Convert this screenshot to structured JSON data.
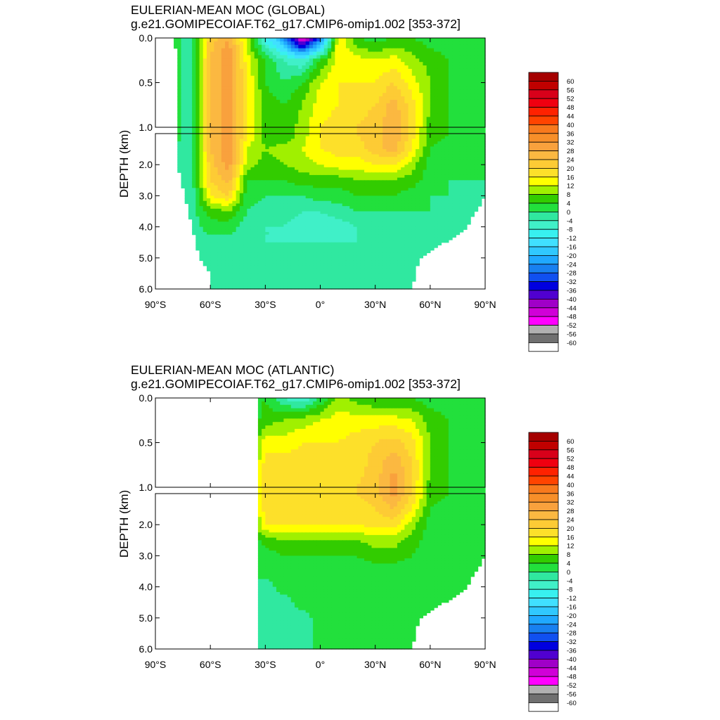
{
  "colorbar": {
    "labels": [
      "60",
      "56",
      "52",
      "48",
      "44",
      "40",
      "36",
      "32",
      "28",
      "24",
      "20",
      "16",
      "12",
      "8",
      "4",
      "0",
      "-4",
      "-8",
      "-12",
      "-16",
      "-20",
      "-24",
      "-28",
      "-32",
      "-36",
      "-40",
      "-44",
      "-48",
      "-52",
      "-56",
      "-60"
    ],
    "colors": [
      "#a50000",
      "#c00000",
      "#d8001a",
      "#f00010",
      "#ff2200",
      "#ff4400",
      "#f77a1d",
      "#f78f29",
      "#f9a13d",
      "#fbb841",
      "#fdcb35",
      "#fde02a",
      "#ffff00",
      "#a0f000",
      "#32cc00",
      "#22e03c",
      "#30e8a0",
      "#40f0c8",
      "#38f0f0",
      "#40e0ff",
      "#30c8ff",
      "#20a8ff",
      "#1880f0",
      "#1050f0",
      "#0000e0",
      "#5000d0",
      "#a000c8",
      "#d000d8",
      "#ff00ff",
      "#b0b0b0",
      "#707070",
      "#ffffff"
    ]
  },
  "chart_data": [
    {
      "type": "heatmap",
      "title": "EULERIAN-MEAN MOC (GLOBAL)",
      "subtitle": "g.e21.GOMIPECOIAF.T62_g17.CMIP6-omip1.002 [353-372]",
      "ylabel": "DEPTH (km)",
      "xticks": [
        "90°S",
        "60°S",
        "30°S",
        "0°",
        "30°N",
        "60°N",
        "90°N"
      ],
      "yticks_upper": [
        "0.0",
        "0.5",
        "1.0"
      ],
      "yticks_lower": [
        "2.0",
        "3.0",
        "4.0",
        "5.0",
        "6.0"
      ],
      "xlim": [
        -90,
        90
      ],
      "ylim_upper": [
        0,
        1
      ],
      "ylim_lower": [
        1,
        6
      ],
      "x": [
        -90,
        -80,
        -70,
        -60,
        -50,
        -40,
        -30,
        -20,
        -10,
        0,
        10,
        20,
        30,
        40,
        50,
        60,
        70,
        80,
        90
      ],
      "y": [
        0,
        0.25,
        0.5,
        0.75,
        1,
        1.5,
        2,
        2.5,
        3,
        3.5,
        4,
        4.5,
        5,
        5.5,
        6
      ],
      "mask_x_min": [
        -80,
        -78,
        -78,
        -78,
        -78,
        -78,
        -78,
        -76,
        -74,
        -72,
        -70,
        -68,
        -66,
        -60,
        -60
      ],
      "mask_x_max": [
        90,
        90,
        90,
        90,
        90,
        90,
        90,
        90,
        90,
        85,
        80,
        68,
        54,
        52,
        50
      ],
      "values": [
        [
          0,
          2,
          -2,
          22,
          28,
          10,
          -10,
          -24,
          -50,
          -30,
          16,
          4,
          2,
          4,
          4,
          2,
          2,
          2,
          2
        ],
        [
          0,
          2,
          -2,
          24,
          32,
          14,
          4,
          -4,
          -8,
          4,
          14,
          14,
          12,
          14,
          10,
          6,
          4,
          2,
          2
        ],
        [
          0,
          2,
          -2,
          24,
          32,
          16,
          4,
          0,
          4,
          12,
          16,
          16,
          16,
          20,
          14,
          8,
          4,
          2,
          2
        ],
        [
          0,
          2,
          -2,
          24,
          32,
          16,
          6,
          4,
          8,
          14,
          16,
          18,
          20,
          26,
          18,
          8,
          4,
          2,
          2
        ],
        [
          0,
          2,
          -2,
          24,
          32,
          16,
          6,
          4,
          10,
          16,
          18,
          20,
          22,
          28,
          18,
          6,
          4,
          2,
          2
        ],
        [
          0,
          0,
          -2,
          24,
          32,
          12,
          8,
          10,
          12,
          16,
          18,
          18,
          22,
          26,
          16,
          4,
          2,
          2,
          2
        ],
        [
          0,
          0,
          -2,
          22,
          30,
          10,
          6,
          8,
          10,
          12,
          14,
          14,
          16,
          16,
          10,
          2,
          2,
          2,
          2
        ],
        [
          0,
          0,
          -2,
          20,
          26,
          4,
          4,
          4,
          6,
          6,
          6,
          8,
          8,
          8,
          6,
          2,
          0,
          0,
          0
        ],
        [
          0,
          0,
          -2,
          16,
          20,
          2,
          0,
          0,
          0,
          2,
          2,
          4,
          4,
          4,
          2,
          0,
          0,
          0,
          0
        ],
        [
          0,
          0,
          -2,
          6,
          8,
          0,
          -2,
          -2,
          -4,
          -4,
          -2,
          0,
          0,
          0,
          0,
          0,
          0,
          0,
          0
        ],
        [
          0,
          0,
          -2,
          2,
          2,
          -2,
          -4,
          -4,
          -6,
          -6,
          -6,
          -4,
          -2,
          -2,
          0,
          0,
          0,
          0,
          0
        ],
        [
          0,
          0,
          -2,
          -2,
          -2,
          -2,
          -4,
          -4,
          -4,
          -4,
          -4,
          -4,
          -4,
          -4,
          0,
          0,
          0,
          0,
          0
        ],
        [
          0,
          0,
          -2,
          -2,
          -2,
          -2,
          -2,
          -2,
          -2,
          -2,
          -2,
          -2,
          -2,
          -2,
          0,
          0,
          0,
          0,
          0
        ],
        [
          0,
          0,
          -2,
          -2,
          -2,
          -2,
          -2,
          -2,
          -2,
          -2,
          -2,
          -2,
          -2,
          -2,
          0,
          0,
          0,
          0,
          0
        ],
        [
          0,
          0,
          -2,
          -2,
          -2,
          -2,
          -2,
          -2,
          -2,
          -2,
          -2,
          -2,
          -2,
          -2,
          0,
          0,
          0,
          0,
          0
        ]
      ]
    },
    {
      "type": "heatmap",
      "title": "EULERIAN-MEAN MOC (ATLANTIC)",
      "subtitle": "g.e21.GOMIPECOIAF.T62_g17.CMIP6-omip1.002 [353-372]",
      "ylabel": "DEPTH (km)",
      "xticks": [
        "90°S",
        "60°S",
        "30°S",
        "0°",
        "30°N",
        "60°N",
        "90°N"
      ],
      "yticks_upper": [
        "0.0",
        "0.5",
        "1.0"
      ],
      "yticks_lower": [
        "2.0",
        "3.0",
        "4.0",
        "5.0",
        "6.0"
      ],
      "xlim": [
        -90,
        90
      ],
      "ylim_upper": [
        0,
        1
      ],
      "ylim_lower": [
        1,
        6
      ],
      "x": [
        -90,
        -80,
        -70,
        -60,
        -50,
        -40,
        -30,
        -20,
        -10,
        0,
        10,
        20,
        30,
        40,
        50,
        60,
        70,
        80,
        90
      ],
      "y": [
        0,
        0.25,
        0.5,
        0.75,
        1,
        1.5,
        2,
        2.5,
        3,
        3.5,
        4,
        4.5,
        5,
        5.5,
        6
      ],
      "mask_x_min": [
        -33,
        -33,
        -33,
        -33,
        -33,
        -33,
        -33,
        -33,
        -33,
        -33,
        -33,
        -33,
        -33,
        -33,
        -33
      ],
      "mask_x_max": [
        90,
        90,
        90,
        90,
        90,
        90,
        90,
        90,
        90,
        85,
        80,
        68,
        54,
        52,
        50
      ],
      "values": [
        [
          0,
          0,
          0,
          0,
          0,
          0,
          4,
          -4,
          -8,
          0,
          10,
          6,
          4,
          4,
          4,
          2,
          2,
          2,
          2
        ],
        [
          0,
          0,
          0,
          0,
          0,
          0,
          6,
          8,
          10,
          12,
          14,
          14,
          14,
          14,
          12,
          6,
          4,
          2,
          2
        ],
        [
          0,
          0,
          0,
          0,
          0,
          0,
          14,
          14,
          16,
          16,
          16,
          18,
          20,
          22,
          18,
          8,
          4,
          2,
          2
        ],
        [
          0,
          0,
          0,
          0,
          0,
          0,
          18,
          18,
          18,
          18,
          18,
          18,
          22,
          28,
          20,
          8,
          4,
          2,
          2
        ],
        [
          0,
          0,
          0,
          0,
          0,
          0,
          18,
          18,
          18,
          18,
          18,
          20,
          22,
          30,
          20,
          6,
          4,
          2,
          2
        ],
        [
          0,
          0,
          0,
          0,
          0,
          0,
          18,
          18,
          18,
          18,
          18,
          18,
          20,
          24,
          16,
          4,
          2,
          2,
          2
        ],
        [
          0,
          0,
          0,
          0,
          0,
          0,
          16,
          16,
          16,
          16,
          16,
          16,
          18,
          18,
          10,
          2,
          2,
          2,
          2
        ],
        [
          0,
          0,
          0,
          0,
          0,
          0,
          6,
          8,
          8,
          8,
          8,
          8,
          10,
          10,
          6,
          2,
          2,
          2,
          2
        ],
        [
          0,
          0,
          0,
          0,
          0,
          0,
          2,
          4,
          4,
          4,
          4,
          4,
          6,
          6,
          4,
          2,
          2,
          2,
          2
        ],
        [
          0,
          0,
          0,
          0,
          0,
          0,
          2,
          2,
          2,
          2,
          2,
          2,
          2,
          2,
          2,
          2,
          2,
          2,
          2
        ],
        [
          0,
          0,
          0,
          0,
          0,
          0,
          -2,
          2,
          2,
          2,
          2,
          2,
          2,
          2,
          2,
          2,
          2,
          2,
          2
        ],
        [
          0,
          0,
          0,
          0,
          0,
          0,
          -2,
          -2,
          2,
          2,
          2,
          2,
          2,
          2,
          2,
          2,
          2,
          2,
          2
        ],
        [
          0,
          0,
          0,
          0,
          0,
          0,
          -2,
          -2,
          -2,
          2,
          2,
          2,
          2,
          2,
          2,
          2,
          2,
          2,
          2
        ],
        [
          0,
          0,
          0,
          0,
          0,
          0,
          -2,
          -2,
          -2,
          2,
          2,
          2,
          2,
          2,
          2,
          2,
          2,
          2,
          2
        ],
        [
          0,
          0,
          0,
          0,
          0,
          0,
          -2,
          -2,
          -2,
          2,
          2,
          2,
          2,
          2,
          2,
          2,
          2,
          2,
          2
        ]
      ]
    }
  ]
}
